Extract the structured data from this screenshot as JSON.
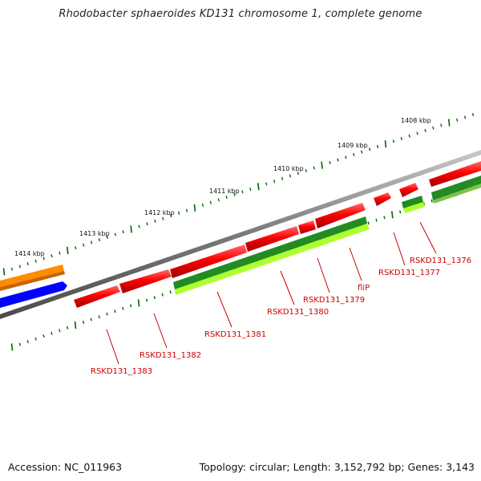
{
  "title": "Rhodobacter sphaeroides KD131 chromosome 1, complete genome",
  "footer": {
    "accession": "Accession: NC_011963",
    "summary": "Topology: circular; Length: 3,152,792 bp; Genes: 3,143"
  },
  "kbp_labels": [
    "1408 kbp",
    "1409 kbp",
    "1410 kbp",
    "1411 kbp",
    "1412 kbp",
    "1413 kbp",
    "1414 kbp"
  ],
  "gene_labels": [
    "RSKD131_1376",
    "RSKD131_1377",
    "fliP",
    "RSKD131_1379",
    "RSKD131_1380",
    "RSKD131_1381",
    "RSKD131_1382",
    "RSKD131_1383"
  ],
  "colors": {
    "backbone": "#808080",
    "cds": "#ff0000",
    "cds_shadow": "#b30000",
    "gene_dark_green": "#228b22",
    "gene_light_green": "#adff2f",
    "orange_feature": "#ff8c00",
    "blue_feature": "#0000ff",
    "tick": "#006400",
    "label": "#cc0000"
  }
}
